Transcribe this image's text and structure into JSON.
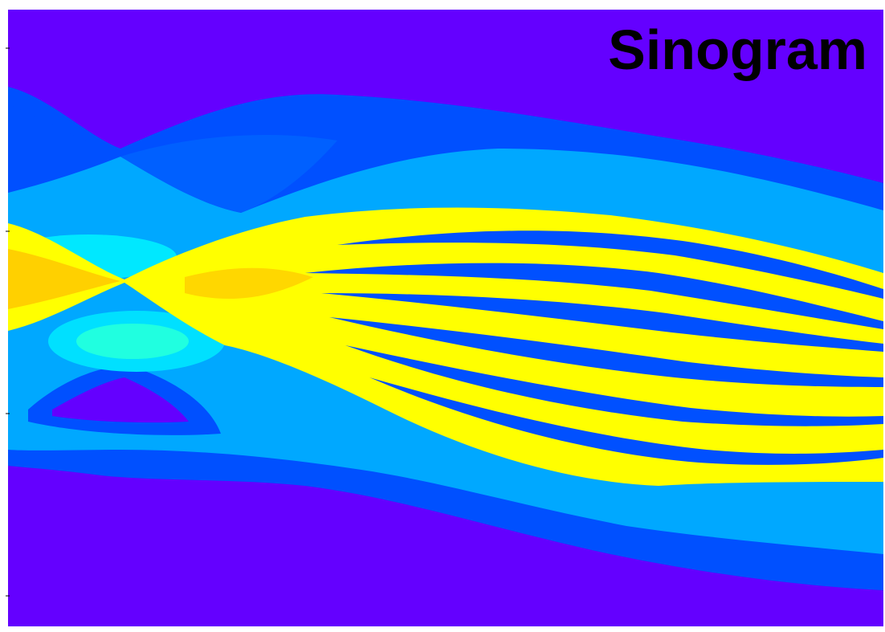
{
  "title": "Sinogram"
}
